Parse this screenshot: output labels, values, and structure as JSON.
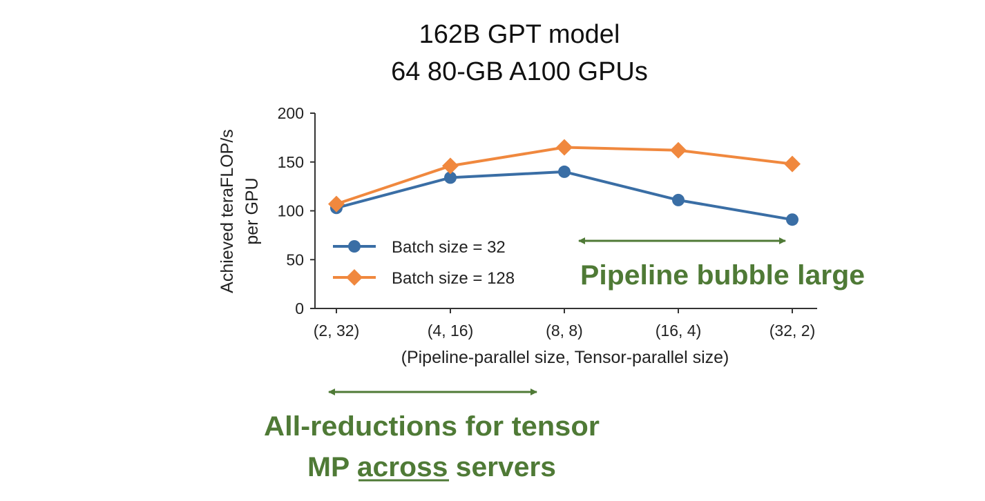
{
  "chart_data": {
    "type": "line",
    "title": [
      "162B GPT model",
      "64 80-GB A100 GPUs"
    ],
    "xlabel": "(Pipeline-parallel size, Tensor-parallel size)",
    "ylabel": [
      "Achieved teraFLOP/s",
      "per GPU"
    ],
    "categories": [
      "(2, 32)",
      "(4, 16)",
      "(8, 8)",
      "(16, 4)",
      "(32, 2)"
    ],
    "ylim": [
      0,
      200
    ],
    "yticks": [
      0,
      50,
      100,
      150,
      200
    ],
    "grid": false,
    "legend_position": "center-left",
    "series": [
      {
        "name": "Batch size = 32",
        "values": [
          103,
          134,
          140,
          111,
          91
        ],
        "color": "#3a6ea5",
        "marker": "circle"
      },
      {
        "name": "Batch size = 128",
        "values": [
          107,
          146,
          165,
          162,
          148
        ],
        "color": "#f0883e",
        "marker": "diamond"
      }
    ],
    "annotations": {
      "pipeline": {
        "text": "Pipeline bubble large",
        "from_category": 2,
        "to_category": 4
      },
      "allreduce": {
        "lines": [
          "All-reductions for tensor",
          "MP across servers"
        ],
        "underlined_word": "across",
        "from_category": 0,
        "to_category": 2
      }
    },
    "annotation_color": "#4f7a36"
  }
}
